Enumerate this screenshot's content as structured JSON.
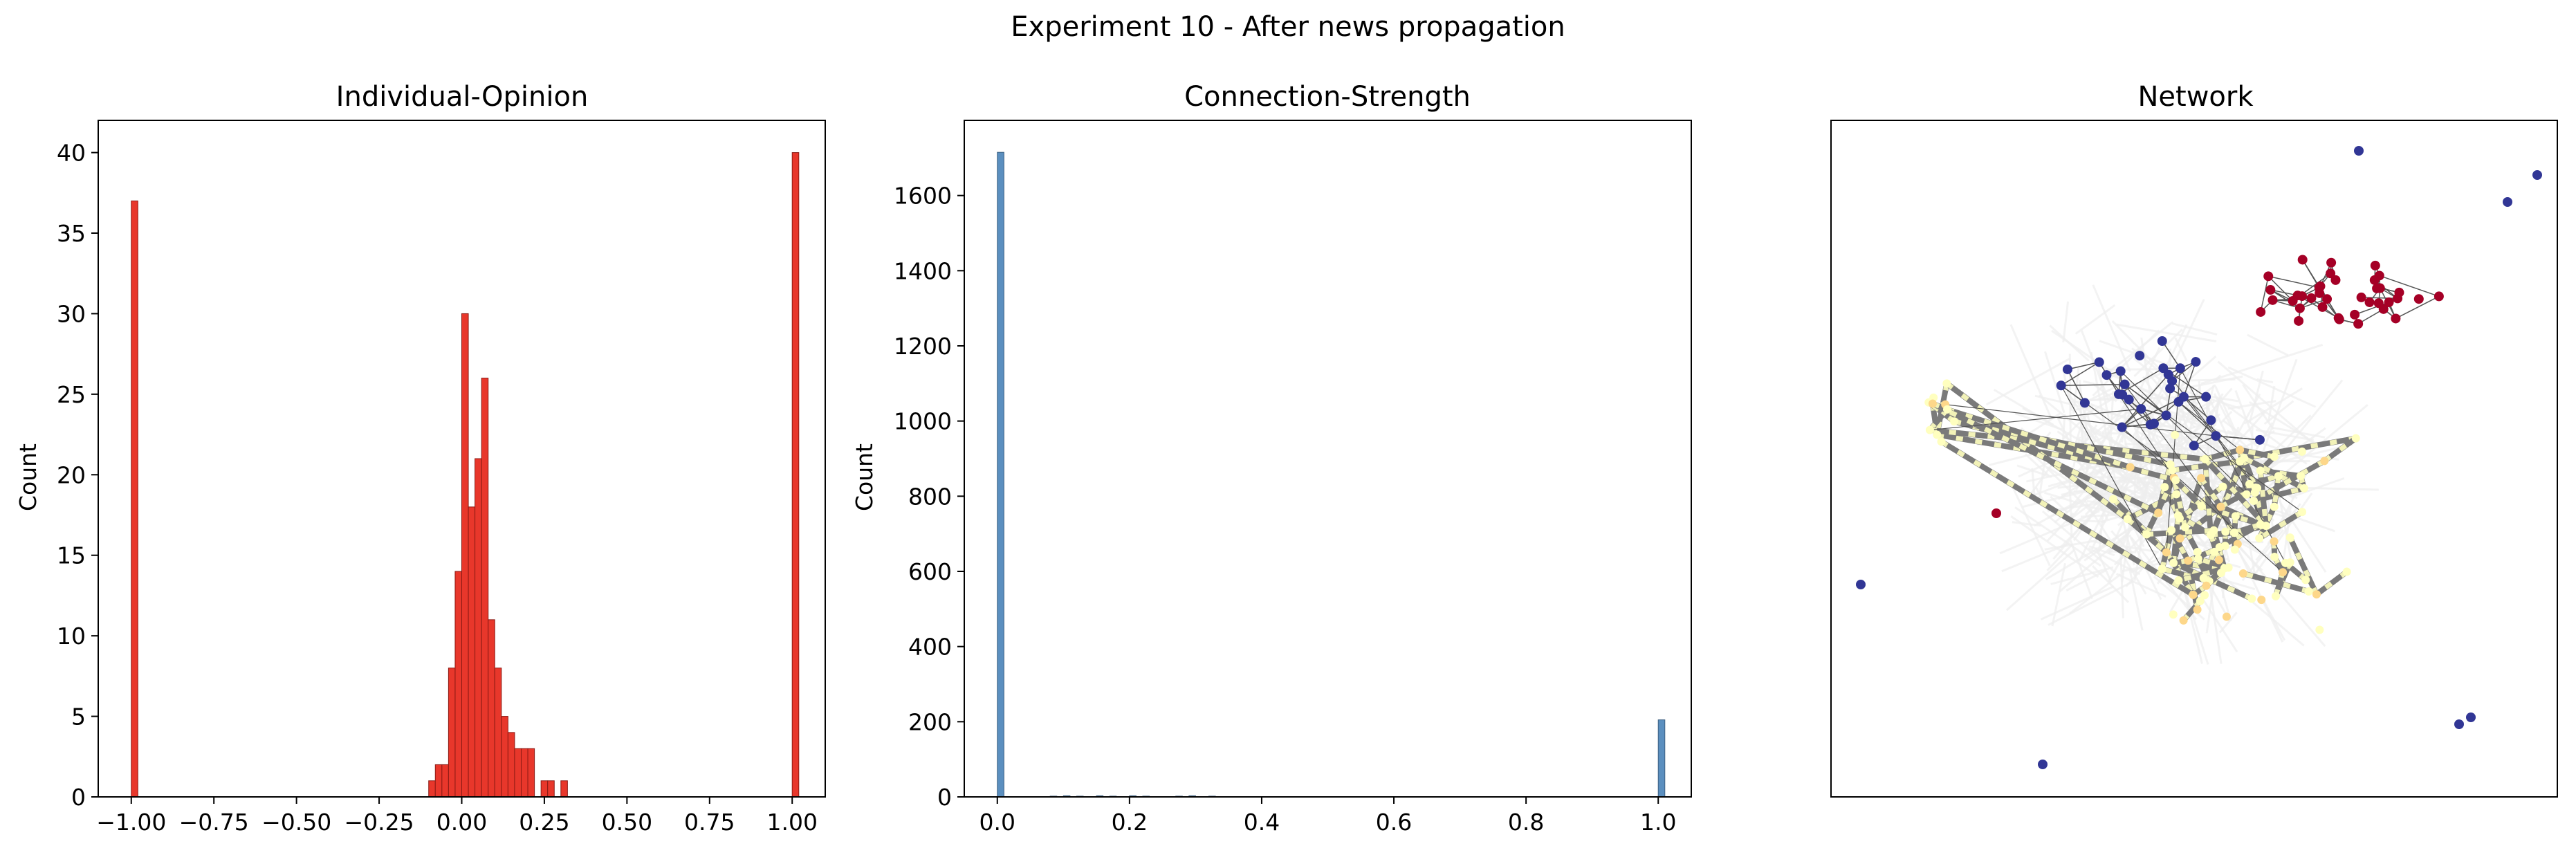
{
  "figure": {
    "suptitle": "Experiment 10 - After news propagation"
  },
  "chart_data": [
    {
      "type": "bar",
      "title": "Individual-Opinion",
      "xlabel": "",
      "ylabel": "Count",
      "xlim": [
        -1.1,
        1.1
      ],
      "ylim": [
        0,
        42
      ],
      "xticks": [
        -1.0,
        -0.75,
        -0.5,
        -0.25,
        0.0,
        0.25,
        0.5,
        0.75,
        1.0
      ],
      "xtick_labels": [
        "−1.00",
        "−0.75",
        "−0.50",
        "−0.25",
        "0.00",
        "0.25",
        "0.50",
        "0.75",
        "1.00"
      ],
      "yticks": [
        0,
        5,
        10,
        15,
        20,
        25,
        30,
        35,
        40
      ],
      "ytick_labels": [
        "0",
        "5",
        "10",
        "15",
        "20",
        "25",
        "30",
        "35",
        "40"
      ],
      "bin_width": 0.02,
      "color": "#e8372b",
      "edgecolor": "#8b1a14",
      "bins": [
        {
          "x": -1.0,
          "count": 37
        },
        {
          "x": -0.1,
          "count": 1
        },
        {
          "x": -0.08,
          "count": 2
        },
        {
          "x": -0.06,
          "count": 2
        },
        {
          "x": -0.04,
          "count": 8
        },
        {
          "x": -0.02,
          "count": 14
        },
        {
          "x": 0.0,
          "count": 30
        },
        {
          "x": 0.02,
          "count": 18
        },
        {
          "x": 0.04,
          "count": 21
        },
        {
          "x": 0.06,
          "count": 26
        },
        {
          "x": 0.08,
          "count": 11
        },
        {
          "x": 0.1,
          "count": 8
        },
        {
          "x": 0.12,
          "count": 5
        },
        {
          "x": 0.14,
          "count": 4
        },
        {
          "x": 0.16,
          "count": 3
        },
        {
          "x": 0.18,
          "count": 3
        },
        {
          "x": 0.2,
          "count": 3
        },
        {
          "x": 0.24,
          "count": 1
        },
        {
          "x": 0.26,
          "count": 1
        },
        {
          "x": 0.3,
          "count": 1
        },
        {
          "x": 1.0,
          "count": 40
        }
      ]
    },
    {
      "type": "bar",
      "title": "Connection-Strength",
      "xlabel": "",
      "ylabel": "Count",
      "xlim": [
        -0.05,
        1.05
      ],
      "ylim": [
        0,
        1800
      ],
      "xticks": [
        0.0,
        0.2,
        0.4,
        0.6,
        0.8,
        1.0
      ],
      "xtick_labels": [
        "0.0",
        "0.2",
        "0.4",
        "0.6",
        "0.8",
        "1.0"
      ],
      "yticks": [
        0,
        200,
        400,
        600,
        800,
        1000,
        1200,
        1400,
        1600
      ],
      "ytick_labels": [
        "0",
        "200",
        "400",
        "600",
        "800",
        "1000",
        "1200",
        "1400",
        "1600"
      ],
      "bin_width": 0.01,
      "color": "#5b8fbf",
      "edgecolor": "#3b5e80",
      "bins": [
        {
          "x": 0.0,
          "count": 1715
        },
        {
          "x": 0.08,
          "count": 2
        },
        {
          "x": 0.1,
          "count": 3
        },
        {
          "x": 0.12,
          "count": 2
        },
        {
          "x": 0.15,
          "count": 3
        },
        {
          "x": 0.17,
          "count": 2
        },
        {
          "x": 0.2,
          "count": 3
        },
        {
          "x": 0.22,
          "count": 2
        },
        {
          "x": 0.27,
          "count": 2
        },
        {
          "x": 0.29,
          "count": 3
        },
        {
          "x": 0.32,
          "count": 2
        },
        {
          "x": 1.0,
          "count": 205
        }
      ]
    },
    {
      "type": "network",
      "title": "Network",
      "node_colors": {
        "negative": "#a50026",
        "positive": "#313695",
        "neutral": "#ffffbf",
        "mild": "#fdd78a"
      },
      "edge_colors": {
        "strong": "#7a7a7a",
        "thin": "#555555",
        "faint": "#eeeeee"
      }
    }
  ]
}
